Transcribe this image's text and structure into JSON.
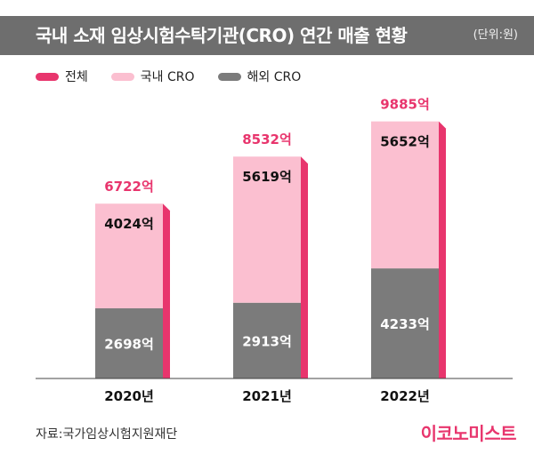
{
  "header": {
    "title": "국내 소재 임상시험수탁기관(CRO) 연간 매출 현황",
    "unit": "(단위:원)"
  },
  "chart_data": {
    "type": "bar",
    "stacked": true,
    "categories": [
      "2020년",
      "2021년",
      "2022년"
    ],
    "series": [
      {
        "name": "해외 CRO",
        "values": [
          2698,
          2913,
          4233
        ],
        "labels": [
          "2698억",
          "2913억",
          "4233억"
        ],
        "color": "#7b7b7b"
      },
      {
        "name": "국내 CRO",
        "values": [
          4024,
          5619,
          5652
        ],
        "labels": [
          "4024억",
          "5619억",
          "5652억"
        ],
        "color": "#fbbfd0"
      }
    ],
    "totals": {
      "name": "전체",
      "values": [
        6722,
        8532,
        9885
      ],
      "labels": [
        "6722억",
        "8532억",
        "9885억"
      ],
      "color": "#e8356d"
    },
    "side_color": "#e8356d",
    "ylim": [
      0,
      11000
    ],
    "legend_position": "top-left",
    "grid": false
  },
  "footer": {
    "source": "자료:국가임상시험지원재단",
    "brand": "이코노미스트"
  }
}
